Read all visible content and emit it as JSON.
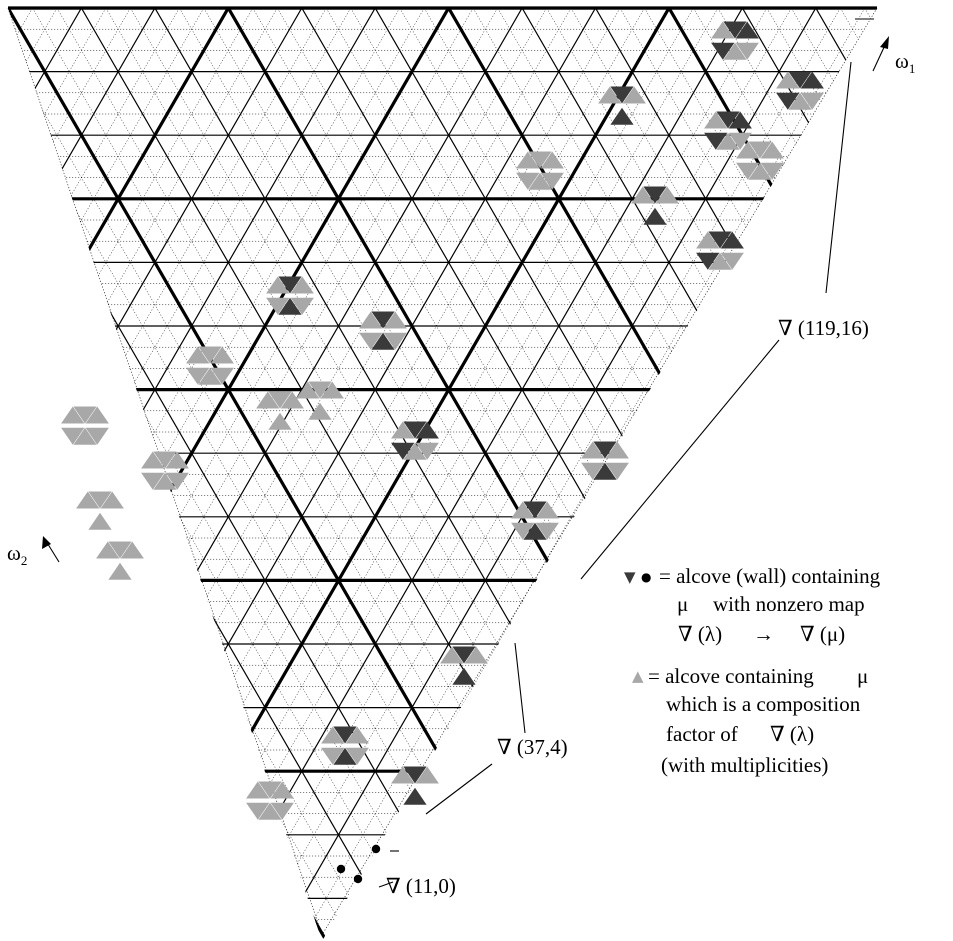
{
  "colors": {
    "dark_alcove": "#3a3a3a",
    "light_alcove": "#a8a8a8",
    "thin_line": "#000000",
    "thick_line": "#000000"
  },
  "axes": {
    "omega1": {
      "base": "ω",
      "sub": "1"
    },
    "omega2": {
      "base": "ω",
      "sub": "2"
    }
  },
  "modules": {
    "m119": "∇ (119,16)",
    "m37": "∇ (37,4)",
    "m11": "∇ (11,0)"
  },
  "legend": {
    "dark_symbol": "▼",
    "dot_symbol": "●",
    "line1": "= alcove (wall) containing",
    "line2_mu": "μ",
    "line2": "with nonzero map",
    "line3_left": "∇ (λ)",
    "line3_arrow": "→",
    "line3_right": "∇ (μ)",
    "light_symbol": "▲",
    "line4": "= alcove containing",
    "line4_mu": "μ",
    "line5": "which is a composition",
    "line6": "factor of",
    "line6_nabla": "∇ (λ)",
    "line7": "(with multiplicities)"
  }
}
